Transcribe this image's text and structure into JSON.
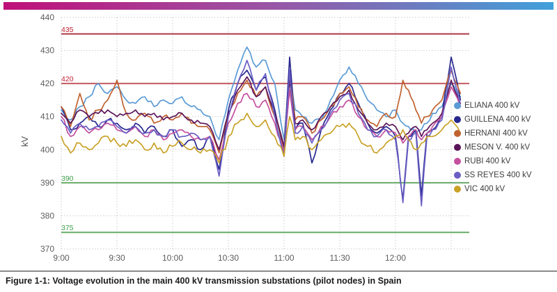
{
  "figure": {
    "caption": "Figure 1-1: Voltage evolution in the main 400 kV transmission substations (pilot nodes) in Spain",
    "header_gradient": [
      "#bf1079",
      "#9a55a5",
      "#41a0da"
    ]
  },
  "chart_data": {
    "type": "line",
    "title": "",
    "xlabel": "",
    "ylabel": "kV",
    "ylim": [
      370,
      440
    ],
    "grid": "dotted",
    "legend_position": "right",
    "y_ticks": [
      440,
      430,
      420,
      410,
      400,
      390,
      380,
      370
    ],
    "x_ticks": {
      "minutes_from_start": [
        0,
        30,
        60,
        90,
        120,
        150,
        180,
        210
      ],
      "labels": [
        "9:00",
        "9:30",
        "10:00",
        "10:30",
        "11:00",
        "11:30",
        "12:00",
        ""
      ]
    },
    "reference_lines": [
      {
        "value": 435,
        "label": "435",
        "color": "#ad3a44",
        "label_color": "#c11f2f"
      },
      {
        "value": 420,
        "label": "420",
        "color": "#c25a60",
        "label_color": "#c11f2f"
      },
      {
        "value": 390,
        "label": "390",
        "color": "#67aa66",
        "label_color": "#3da04b"
      },
      {
        "value": 375,
        "label": "375",
        "color": "#67aa66",
        "label_color": "#3da04b"
      }
    ],
    "x_minutes": [
      0,
      5,
      10,
      15,
      20,
      25,
      30,
      35,
      40,
      45,
      50,
      55,
      60,
      65,
      70,
      75,
      80,
      85,
      90,
      95,
      100,
      105,
      110,
      115,
      120,
      123,
      126,
      130,
      135,
      140,
      145,
      150,
      155,
      160,
      165,
      170,
      175,
      180,
      184,
      187,
      191,
      194,
      197,
      200,
      205,
      210,
      215
    ],
    "noise_kv": [
      0.8,
      0.9,
      0.9,
      0.7,
      0.9,
      0.9,
      1.2
    ],
    "series": [
      {
        "name": "ELIANA 400 kV",
        "color": "#5b9bd5",
        "values": [
          412,
          409,
          413,
          416,
          420,
          417,
          419,
          415,
          414,
          416,
          413,
          415,
          414,
          416,
          413,
          412,
          410,
          403,
          415,
          424,
          431,
          425,
          427,
          420,
          403,
          424,
          412,
          410,
          408,
          409,
          415,
          421,
          425,
          420,
          415,
          412,
          410,
          412,
          408,
          407,
          405,
          406,
          408,
          411,
          413,
          420,
          416
        ]
      },
      {
        "name": "GUILLENA 400 kV",
        "color": "#28288f",
        "values": [
          413,
          406,
          408,
          410,
          407,
          409,
          408,
          406,
          408,
          405,
          407,
          404,
          406,
          401,
          403,
          400,
          404,
          394,
          412,
          420,
          424,
          418,
          422,
          412,
          398,
          428,
          406,
          408,
          396,
          406,
          412,
          417,
          420,
          414,
          408,
          405,
          407,
          404,
          385,
          404,
          406,
          386,
          405,
          406,
          410,
          428,
          415
        ]
      },
      {
        "name": "HERNANI 400 kV",
        "color": "#c0622f",
        "values": [
          413,
          407,
          417,
          409,
          412,
          415,
          421,
          411,
          409,
          411,
          408,
          410,
          409,
          411,
          408,
          407,
          406,
          399,
          410,
          417,
          421,
          416,
          419,
          410,
          400,
          422,
          409,
          410,
          405,
          409,
          413,
          417,
          419,
          413,
          409,
          407,
          411,
          410,
          421,
          418,
          412,
          408,
          410,
          412,
          415,
          424,
          417
        ]
      },
      {
        "name": "MESON V. 400 kV",
        "color": "#5a1458",
        "values": [
          411,
          408,
          412,
          410,
          411,
          412,
          410,
          411,
          412,
          410,
          411,
          409,
          410,
          411,
          409,
          408,
          407,
          400,
          411,
          418,
          422,
          416,
          419,
          411,
          401,
          421,
          408,
          409,
          406,
          410,
          413,
          416,
          418,
          412,
          408,
          406,
          408,
          407,
          403,
          405,
          407,
          404,
          406,
          408,
          411,
          421,
          414
        ]
      },
      {
        "name": "RUBI 400 kV",
        "color": "#c4509e",
        "values": [
          410,
          404,
          407,
          405,
          406,
          408,
          406,
          405,
          407,
          404,
          406,
          403,
          405,
          406,
          404,
          403,
          404,
          397,
          408,
          414,
          417,
          413,
          415,
          408,
          399,
          418,
          406,
          407,
          403,
          407,
          410,
          413,
          415,
          410,
          406,
          404,
          406,
          405,
          402,
          404,
          406,
          403,
          405,
          407,
          410,
          419,
          413
        ]
      },
      {
        "name": "SS REYES 400 kV",
        "color": "#6a5ec4",
        "values": [
          409,
          405,
          408,
          406,
          407,
          409,
          407,
          405,
          407,
          405,
          406,
          404,
          406,
          404,
          405,
          403,
          404,
          392,
          410,
          420,
          427,
          418,
          423,
          410,
          398,
          424,
          405,
          407,
          402,
          406,
          411,
          415,
          417,
          411,
          406,
          404,
          406,
          403,
          384,
          403,
          405,
          383,
          404,
          406,
          409,
          425,
          413
        ]
      },
      {
        "name": "VIC 400 kV",
        "color": "#c9a227",
        "values": [
          404,
          399,
          402,
          400,
          402,
          404,
          402,
          401,
          403,
          400,
          402,
          399,
          401,
          402,
          400,
          399,
          400,
          396,
          404,
          408,
          411,
          407,
          409,
          404,
          398,
          410,
          403,
          404,
          400,
          403,
          405,
          407,
          408,
          404,
          401,
          399,
          402,
          404,
          406,
          403,
          400,
          402,
          404,
          404,
          406,
          409,
          405
        ]
      }
    ]
  }
}
